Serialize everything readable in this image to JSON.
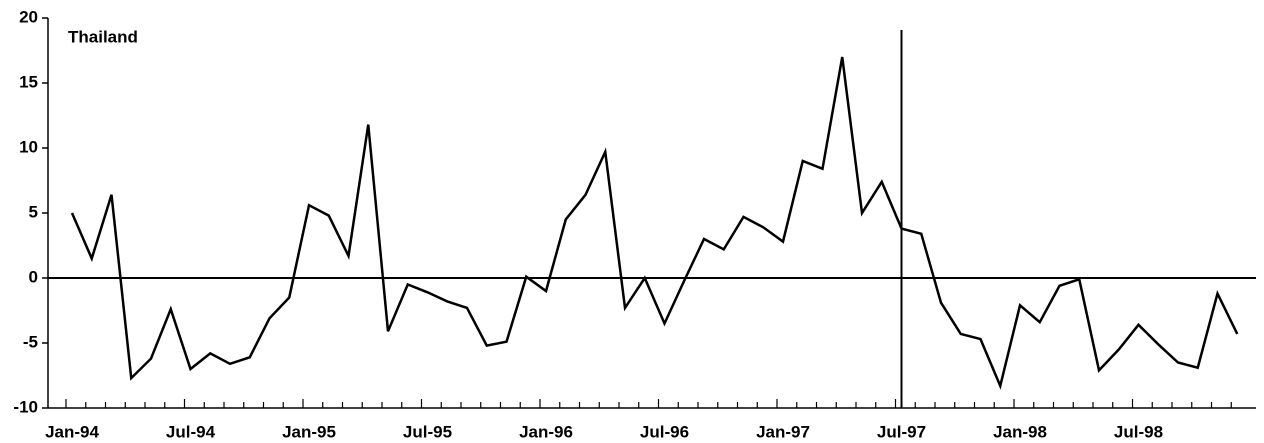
{
  "chart_data": {
    "type": "line",
    "annotation": "Thailand",
    "categories": [
      "Jan-94",
      null,
      null,
      null,
      null,
      null,
      "Jul-94",
      null,
      null,
      null,
      null,
      null,
      "Jan-95",
      null,
      null,
      null,
      null,
      null,
      "Jul-95",
      null,
      null,
      null,
      null,
      null,
      "Jan-96",
      null,
      null,
      null,
      null,
      null,
      "Jul-96",
      null,
      null,
      null,
      null,
      null,
      "Jan-97",
      null,
      null,
      null,
      null,
      null,
      "Jul-97",
      null,
      null,
      null,
      null,
      null,
      "Jan-98",
      null,
      null,
      null,
      null,
      null,
      "Jul-98",
      null,
      null,
      null,
      null,
      null
    ],
    "values": [
      5,
      1.5,
      6.4,
      -7.7,
      -6.2,
      -2.4,
      -7,
      -5.8,
      -6.6,
      -6.1,
      -3.1,
      -1.5,
      5.6,
      4.8,
      1.7,
      11.8,
      -4.1,
      -0.5,
      -1.1,
      -1.8,
      -2.3,
      -5.2,
      -4.9,
      0.1,
      -1,
      4.5,
      6.4,
      9.7,
      -2.3,
      0,
      -3.5,
      -0.2,
      3,
      2.2,
      4.7,
      3.9,
      2.8,
      9,
      8.4,
      17,
      5,
      7.4,
      3.8,
      3.4,
      -1.9,
      -4.3,
      -4.7,
      -8.3,
      -2.1,
      -3.4,
      -0.6,
      -0.1,
      -7.1,
      -5.5,
      -3.6,
      -5.1,
      -6.5,
      -6.9,
      -1.2,
      -4.3
    ],
    "color": "#000000",
    "vline": "Jul-97",
    "ylim": [
      -10,
      20
    ],
    "yticks": [
      -10,
      -5,
      0,
      5,
      10,
      15,
      20
    ],
    "grid": false
  }
}
